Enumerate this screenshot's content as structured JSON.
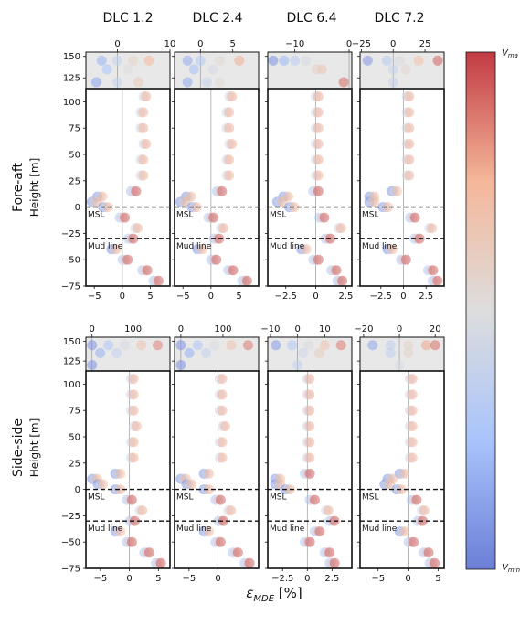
{
  "figure": {
    "columns": [
      "DLC 1.2",
      "DLC 2.4",
      "DLC 6.4",
      "DLC 7.2"
    ],
    "rows": [
      "Fore-aft",
      "Side-side"
    ],
    "ylabel": "Height [m]",
    "xlabel": "ε_MDE [%]",
    "xlabel_main": "ε",
    "xlabel_sub": "MDE",
    "xlabel_unit": " [%]",
    "ref_labels": {
      "msl": "MSL",
      "mudline": "Mud line"
    },
    "colorbar": {
      "top_label": "V_max",
      "bottom_label": "V_min",
      "top_text": "V",
      "top_sub": "ma",
      "bottom_text": "V",
      "bottom_sub": "min",
      "colors": [
        "#6B7FD7",
        "#A9C4FC",
        "#DDDDDD",
        "#F5B79A",
        "#C23B42"
      ]
    }
  },
  "chart_data": [
    {
      "type": "scatter",
      "row": "Fore-aft",
      "column": "DLC 1.2",
      "ylim": [
        -75,
        150
      ],
      "yticks": [
        -75,
        -50,
        -25,
        0,
        25,
        50,
        75,
        100,
        125,
        150
      ],
      "upper_xlim": [
        -6,
        10
      ],
      "upper_xticks": [
        0,
        10
      ],
      "lower_xlim": [
        -6.5,
        8.5
      ],
      "lower_xticks": [
        -5,
        0,
        5
      ],
      "msl": 0,
      "mudline": -30,
      "upper_points": {
        "x": [
          -3,
          0,
          3,
          6,
          -2,
          2,
          -4,
          0,
          4
        ],
        "y": [
          145,
          145,
          145,
          145,
          135,
          135,
          120,
          120,
          120
        ]
      },
      "profile": {
        "y": [
          105,
          90,
          75,
          60,
          45,
          30,
          15,
          10,
          5,
          0,
          -10,
          -20,
          -30,
          -40,
          -50,
          -60,
          -70
        ],
        "x": [
          4,
          3.5,
          3.5,
          4,
          3.5,
          3.5,
          2,
          -4,
          -5,
          -3,
          0,
          2.5,
          1.5,
          -1.5,
          0.5,
          4,
          6
        ]
      }
    },
    {
      "type": "scatter",
      "row": "Fore-aft",
      "column": "DLC 2.4",
      "ylim": [
        -75,
        150
      ],
      "yticks": [
        -75,
        -50,
        -25,
        0,
        25,
        50,
        75,
        100,
        125,
        150
      ],
      "upper_xlim": [
        -4,
        9
      ],
      "upper_xticks": [
        0,
        5
      ],
      "lower_xlim": [
        -6.5,
        8.5
      ],
      "lower_xticks": [
        -5,
        0,
        5
      ],
      "msl": 0,
      "mudline": -30,
      "upper_points": {
        "x": [
          -2,
          0,
          3,
          6,
          -1,
          2,
          -2,
          1,
          3
        ],
        "y": [
          145,
          145,
          145,
          145,
          135,
          135,
          120,
          120,
          120
        ]
      },
      "profile": {
        "y": [
          105,
          90,
          75,
          60,
          45,
          30,
          15,
          10,
          5,
          0,
          -10,
          -20,
          -30,
          -40,
          -50,
          -60,
          -70
        ],
        "x": [
          3.5,
          3,
          3,
          3.5,
          3,
          3,
          1.5,
          -4,
          -5,
          -3,
          0,
          2,
          1,
          -2,
          0.5,
          3.5,
          6
        ]
      }
    },
    {
      "type": "scatter",
      "row": "Fore-aft",
      "column": "DLC 6.4",
      "ylim": [
        -75,
        150
      ],
      "yticks": [
        -75,
        -50,
        -25,
        0,
        25,
        50,
        75,
        100,
        125,
        150
      ],
      "upper_xlim": [
        -15,
        0.5
      ],
      "upper_xticks": [
        -10,
        0
      ],
      "lower_xlim": [
        -4,
        3
      ],
      "lower_xticks": [
        -2.5,
        0.0,
        2.5
      ],
      "msl": 0,
      "mudline": -30,
      "upper_points": {
        "x": [
          -14,
          -12,
          -10,
          -8,
          -6,
          -5,
          -1
        ],
        "y": [
          145,
          145,
          145,
          145,
          135,
          135,
          120
        ]
      },
      "profile": {
        "y": [
          105,
          90,
          75,
          60,
          45,
          30,
          15,
          10,
          5,
          0,
          -10,
          -20,
          -30,
          -40,
          -50,
          -60,
          -70
        ],
        "x": [
          0.1,
          0.1,
          0.1,
          0.1,
          0.1,
          0.1,
          0,
          -2.5,
          -3,
          -2,
          0.5,
          2,
          1,
          -1,
          0,
          1.5,
          2
        ]
      }
    },
    {
      "type": "scatter",
      "row": "Fore-aft",
      "column": "DLC 7.2",
      "ylim": [
        -75,
        150
      ],
      "yticks": [
        -75,
        -50,
        -25,
        0,
        25,
        50,
        75,
        100,
        125,
        150
      ],
      "upper_xlim": [
        -26,
        40
      ],
      "upper_xticks": [
        -25,
        0,
        25
      ],
      "lower_xlim": [
        -4.8,
        4.5
      ],
      "lower_xticks": [
        -2.5,
        0.0,
        2.5
      ],
      "msl": 0,
      "mudline": -30,
      "upper_points": {
        "x": [
          -20,
          -5,
          5,
          20,
          35,
          0,
          10,
          0
        ],
        "y": [
          145,
          145,
          145,
          145,
          145,
          135,
          135,
          120
        ]
      },
      "profile": {
        "y": [
          105,
          90,
          75,
          60,
          45,
          30,
          15,
          10,
          5,
          0,
          -10,
          -20,
          -30,
          -40,
          -50,
          -60,
          -70
        ],
        "x": [
          0.5,
          0.5,
          0.5,
          0.5,
          0.5,
          0.5,
          -1,
          -3.5,
          -3.5,
          -2,
          1,
          3,
          1.5,
          -1.5,
          0,
          3,
          3.5
        ]
      }
    },
    {
      "type": "scatter",
      "row": "Side-side",
      "column": "DLC 1.2",
      "ylim": [
        -75,
        150
      ],
      "yticks": [
        -75,
        -50,
        -25,
        0,
        25,
        50,
        75,
        100,
        125,
        150
      ],
      "upper_xlim": [
        -15,
        190
      ],
      "upper_xticks": [
        0,
        100
      ],
      "lower_xlim": [
        -7.5,
        7
      ],
      "lower_xticks": [
        -5,
        0,
        5
      ],
      "msl": 0,
      "mudline": -30,
      "upper_points": {
        "x": [
          0,
          40,
          80,
          120,
          160,
          20,
          60,
          0
        ],
        "y": [
          145,
          145,
          145,
          145,
          145,
          135,
          135,
          120
        ]
      },
      "profile": {
        "y": [
          105,
          90,
          75,
          60,
          45,
          30,
          15,
          10,
          5,
          0,
          -10,
          -20,
          -30,
          -40,
          -50,
          -60,
          -70
        ],
        "x": [
          0.5,
          0.5,
          0.5,
          1,
          0.5,
          0.5,
          -2,
          -6,
          -5,
          -2,
          0,
          2,
          0.5,
          -2,
          0,
          3,
          5
        ]
      }
    },
    {
      "type": "scatter",
      "row": "Side-side",
      "column": "DLC 2.4",
      "ylim": [
        -75,
        150
      ],
      "yticks": [
        -75,
        -50,
        -25,
        0,
        25,
        50,
        75,
        100,
        125,
        150
      ],
      "upper_xlim": [
        -15,
        185
      ],
      "upper_xticks": [
        0,
        100
      ],
      "lower_xlim": [
        -7.5,
        7
      ],
      "lower_xticks": [
        -5,
        0
      ],
      "msl": 0,
      "mudline": -30,
      "upper_points": {
        "x": [
          0,
          40,
          80,
          120,
          160,
          20,
          60,
          0
        ],
        "y": [
          145,
          145,
          145,
          145,
          145,
          135,
          135,
          120
        ]
      },
      "profile": {
        "y": [
          105,
          90,
          75,
          60,
          45,
          30,
          15,
          10,
          5,
          0,
          -10,
          -20,
          -30,
          -40,
          -50,
          -60,
          -70
        ],
        "x": [
          0.5,
          0.5,
          0.5,
          1,
          0.5,
          0.5,
          -2,
          -6,
          -5,
          -2,
          0,
          2,
          0.5,
          -2,
          0,
          3,
          5
        ]
      }
    },
    {
      "type": "scatter",
      "row": "Side-side",
      "column": "DLC 6.4",
      "ylim": [
        -75,
        150
      ],
      "yticks": [
        -75,
        -50,
        -25,
        0,
        25,
        50,
        75,
        100,
        125,
        150
      ],
      "upper_xlim": [
        -11,
        20
      ],
      "upper_xticks": [
        -10,
        0,
        10
      ],
      "lower_xlim": [
        -4,
        4.5
      ],
      "lower_xticks": [
        -2.5,
        0.0,
        2.5
      ],
      "msl": 0,
      "mudline": -30,
      "upper_points": {
        "x": [
          -8,
          -2,
          4,
          10,
          16,
          2,
          8,
          0
        ],
        "y": [
          145,
          145,
          145,
          145,
          145,
          135,
          135,
          120
        ]
      },
      "profile": {
        "y": [
          105,
          90,
          75,
          60,
          45,
          30,
          15,
          10,
          5,
          0,
          -10,
          -20,
          -30,
          -40,
          -50,
          -60,
          -70
        ],
        "x": [
          0.1,
          0.1,
          0.1,
          0.1,
          0.1,
          0.1,
          0,
          -3,
          -3,
          -2,
          0.5,
          2,
          2.5,
          1,
          0,
          2,
          2.5
        ]
      }
    },
    {
      "type": "scatter",
      "row": "Side-side",
      "column": "DLC 7.2",
      "ylim": [
        -75,
        150
      ],
      "yticks": [
        -75,
        -50,
        -25,
        0,
        25,
        50,
        75,
        100,
        125,
        150
      ],
      "upper_xlim": [
        -22,
        25
      ],
      "upper_xticks": [
        -20,
        0,
        20
      ],
      "lower_xlim": [
        -8,
        6
      ],
      "lower_xticks": [
        -5,
        0,
        5
      ],
      "msl": 0,
      "mudline": -30,
      "upper_points": {
        "x": [
          -15,
          -5,
          5,
          15,
          20,
          -5,
          5,
          0
        ],
        "y": [
          145,
          145,
          145,
          145,
          145,
          135,
          135,
          120
        ]
      },
      "profile": {
        "y": [
          105,
          90,
          75,
          60,
          45,
          30,
          15,
          10,
          5,
          0,
          -10,
          -20,
          -30,
          -40,
          -50,
          -60,
          -70
        ],
        "x": [
          0.5,
          0.5,
          0.5,
          0.5,
          0.5,
          0.5,
          -1,
          -3,
          -3.5,
          -1.5,
          1,
          2.5,
          2,
          -1,
          0.5,
          3,
          4
        ]
      }
    }
  ]
}
